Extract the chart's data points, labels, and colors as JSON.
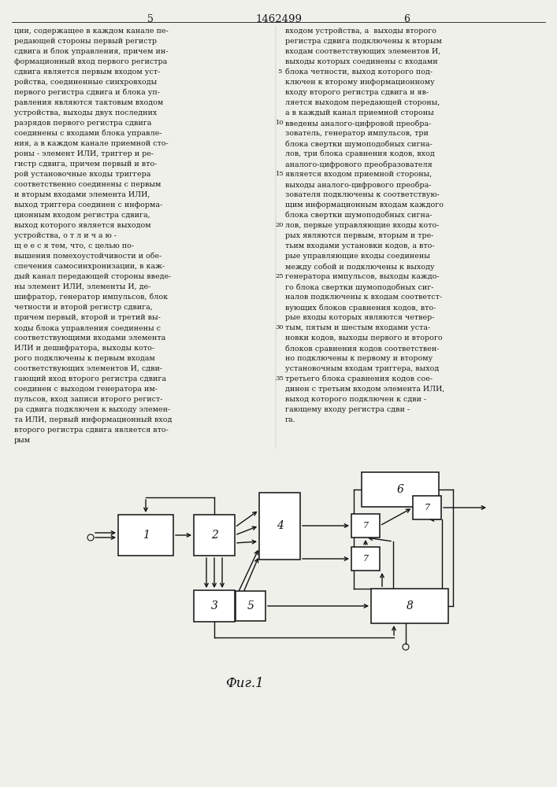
{
  "page_number_left": "5",
  "page_number_right": "6",
  "patent_number": "1462499",
  "background_color": "#f0f0eb",
  "text_color": "#1a1a1a",
  "left_column_text": [
    "ции, содержащее в каждом канале пе-",
    "редающей стороны первый регистр",
    "сдвига и блок управления, причем ин-",
    "формационный вход первого регистра",
    "сдвига является первым входом уст-",
    "ройства, соединенные синхровходы",
    "первого регистра сдвига и блока уп-",
    "равления являются тактовым входом",
    "устройства, выходы двух последних",
    "разрядов первого регистра сдвига",
    "соединены с входами блока управле-",
    "ния, а в каждом канале приемной сто-",
    "роны - элемент ИЛИ, триггер и ре-",
    "гистр сдвига, причем первый и вто-",
    "рой установочные входы триггера",
    "соответственно соединены с первым",
    "и вторым входами элемента ИЛИ,",
    "выход триггера соединен с информа-",
    "ционным входом регистра сдвига,",
    "выход которого является выходом",
    "устройства, о т л и ч а ю -",
    "щ е е с я тем, что, с целью по-",
    "вышения помехоустойчивости и обе-",
    "спечения самосинхронизации, в каж-",
    "дый канал передающей стороны введе-",
    "ны элемент ИЛИ, элементы И, де-",
    "шифратор, генератор импульсов, блок",
    "четности и второй регистр сдвига,",
    "причем первый, второй и третий вы-",
    "ходы блока управления соединены с",
    "соответствующими входами элемента",
    "ИЛИ и дешифратора, выходы кото-",
    "рого подключены к первым входам",
    "соответствующих элементов И, сдви-",
    "гающий вход второго регистра сдвига",
    "соединен с выходом генератора им-",
    "пульсов, вход записи второго регист-",
    "ра сдвига подключен к выходу элемен-",
    "та ИЛИ, первый информационный вход",
    "второго регистра сдвига является вто-",
    "рым"
  ],
  "right_column_text": [
    "входом устройства, а  выходы второго",
    "регистра сдвига подключены к вторым",
    "входам соответствующих элементов И,",
    "выходы которых соединены с входами",
    "блока четности, выход которого под-",
    "ключен к второму информационному",
    "входу второго регистра сдвига и яв-",
    "ляется выходом передающей стороны,",
    "а в каждый канал приемной стороны",
    "введены аналого-цифровой преобра-",
    "зователь, генератор импульсов, три",
    "блока свертки шумоподобных сигна-",
    "лов, три блока сравнения кодов, вход",
    "аналого-цифрового преобразователя",
    "является входом приемной стороны,",
    "выходы аналого-цифрового преобра-",
    "зователя подключены к соответствую-",
    "щим информационным входам каждого",
    "блока свертки шумоподобных сигна-",
    "лов, первые управляющие входы кото-",
    "рых являются первым, вторым и тре-",
    "тьим входами установки кодов, а вто-",
    "рые управляющие входы соединены",
    "между собой и подключены к выходу",
    "генератора импульсов, выходы каждо-",
    "го блока свертки шумоподобных сиг-",
    "налов подключены к входам соответст-",
    "вующих блоков сравнения кодов, вто-",
    "рые входы которых являются четвер-",
    "тым, пятым и шестым входами уста-",
    "новки кодов, выходы первого и второго",
    "блоков сравнения кодов соответствен-",
    "но подключены к первому и второму",
    "установочным входам триггера, выход",
    "третьего блока сравнения кодов сое-",
    "динен с третьим входом элемента ИЛИ,",
    "выход которого подключен к сдви -",
    "гающему входу регистра сдви -",
    "га."
  ],
  "line_number_5_row": 4,
  "line_number_10_row": 9,
  "line_number_15_row": 14,
  "line_number_20_row": 19,
  "line_number_25_row": 24,
  "line_number_30_row": 29,
  "line_number_35_row": 34,
  "fig_label": "Фиг.1"
}
